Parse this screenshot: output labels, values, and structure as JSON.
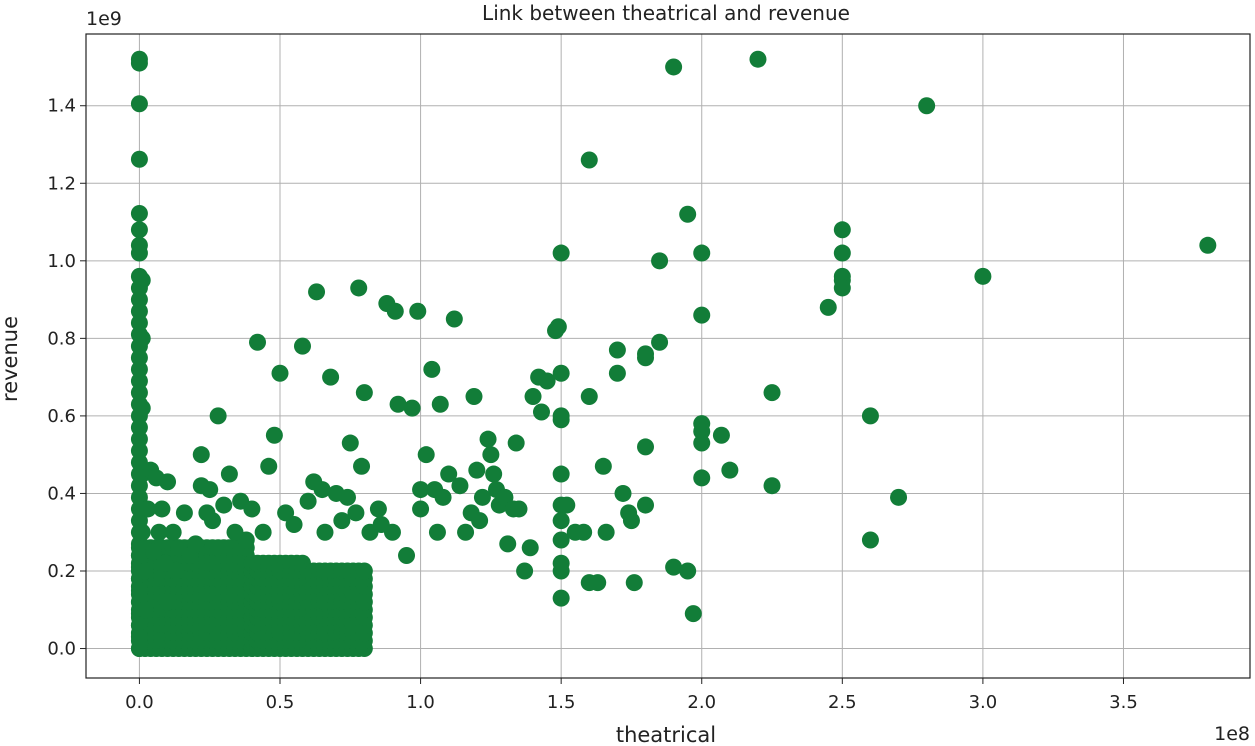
{
  "chart_data": {
    "type": "scatter",
    "title": "Link between theatrical and revenue",
    "xlabel": "theatrical",
    "ylabel": "revenue",
    "x_offset_label": "1e8",
    "y_offset_label": "1e9",
    "xlim": [
      -0.19,
      3.95
    ],
    "ylim": [
      -0.076,
      1.585
    ],
    "x_scale": 100000000,
    "y_scale": 1000000000,
    "x_ticks": [
      0.0,
      0.5,
      1.0,
      1.5,
      2.0,
      2.5,
      3.0,
      3.5
    ],
    "x_tick_labels": [
      "0.0",
      "0.5",
      "1.0",
      "1.5",
      "2.0",
      "2.5",
      "3.0",
      "3.5"
    ],
    "y_ticks": [
      0.0,
      0.2,
      0.4,
      0.6,
      0.8,
      1.0,
      1.2,
      1.4
    ],
    "y_tick_labels": [
      "0.0",
      "0.2",
      "0.4",
      "0.6",
      "0.8",
      "1.0",
      "1.2",
      "1.4"
    ],
    "grid": true,
    "marker_color": "#127d38",
    "points": [
      [
        0.0,
        1.52
      ],
      [
        0.0,
        1.51
      ],
      [
        0.0,
        1.405
      ],
      [
        0.0,
        1.262
      ],
      [
        0.0,
        1.122
      ],
      [
        0.0,
        1.08
      ],
      [
        0.0,
        1.04
      ],
      [
        0.0,
        1.02
      ],
      [
        0.0,
        0.96
      ],
      [
        0.0,
        0.93
      ],
      [
        0.0,
        0.9
      ],
      [
        0.0,
        0.87
      ],
      [
        0.0,
        0.84
      ],
      [
        0.0,
        0.81
      ],
      [
        0.0,
        0.78
      ],
      [
        0.0,
        0.75
      ],
      [
        0.0,
        0.72
      ],
      [
        0.0,
        0.69
      ],
      [
        0.0,
        0.66
      ],
      [
        0.0,
        0.63
      ],
      [
        0.0,
        0.6
      ],
      [
        0.0,
        0.57
      ],
      [
        0.0,
        0.54
      ],
      [
        0.0,
        0.51
      ],
      [
        0.0,
        0.48
      ],
      [
        0.0,
        0.45
      ],
      [
        0.0,
        0.42
      ],
      [
        0.0,
        0.39
      ],
      [
        0.0,
        0.36
      ],
      [
        0.0,
        0.33
      ],
      [
        0.0,
        0.3
      ],
      [
        0.0,
        0.27
      ],
      [
        0.0,
        0.24
      ],
      [
        0.0,
        0.21
      ],
      [
        0.0,
        0.18
      ],
      [
        0.0,
        0.15
      ],
      [
        0.0,
        0.12
      ],
      [
        0.0,
        0.09
      ],
      [
        0.0,
        0.06
      ],
      [
        0.0,
        0.03
      ],
      [
        0.0,
        0.0
      ],
      [
        0.01,
        0.95
      ],
      [
        0.01,
        0.8
      ],
      [
        0.01,
        0.62
      ],
      [
        0.01,
        0.45
      ],
      [
        0.01,
        0.3
      ],
      [
        0.02,
        0.2
      ],
      [
        0.02,
        0.1
      ],
      [
        0.03,
        0.36
      ],
      [
        0.04,
        0.46
      ],
      [
        0.05,
        0.25
      ],
      [
        0.06,
        0.44
      ],
      [
        0.07,
        0.3
      ],
      [
        0.08,
        0.36
      ],
      [
        0.09,
        0.22
      ],
      [
        0.1,
        0.43
      ],
      [
        0.1,
        0.12
      ],
      [
        0.12,
        0.3
      ],
      [
        0.13,
        0.2
      ],
      [
        0.14,
        0.26
      ],
      [
        0.16,
        0.35
      ],
      [
        0.18,
        0.24
      ],
      [
        0.2,
        0.27
      ],
      [
        0.22,
        0.5
      ],
      [
        0.22,
        0.42
      ],
      [
        0.24,
        0.35
      ],
      [
        0.25,
        0.41
      ],
      [
        0.26,
        0.33
      ],
      [
        0.28,
        0.6
      ],
      [
        0.3,
        0.37
      ],
      [
        0.32,
        0.45
      ],
      [
        0.34,
        0.3
      ],
      [
        0.36,
        0.38
      ],
      [
        0.38,
        0.28
      ],
      [
        0.4,
        0.36
      ],
      [
        0.42,
        0.79
      ],
      [
        0.44,
        0.3
      ],
      [
        0.46,
        0.47
      ],
      [
        0.48,
        0.55
      ],
      [
        0.5,
        0.71
      ],
      [
        0.52,
        0.35
      ],
      [
        0.55,
        0.32
      ],
      [
        0.58,
        0.78
      ],
      [
        0.6,
        0.38
      ],
      [
        0.62,
        0.43
      ],
      [
        0.63,
        0.92
      ],
      [
        0.65,
        0.41
      ],
      [
        0.66,
        0.3
      ],
      [
        0.68,
        0.7
      ],
      [
        0.7,
        0.4
      ],
      [
        0.72,
        0.33
      ],
      [
        0.74,
        0.39
      ],
      [
        0.75,
        0.53
      ],
      [
        0.77,
        0.35
      ],
      [
        0.78,
        0.93
      ],
      [
        0.79,
        0.47
      ],
      [
        0.8,
        0.66
      ],
      [
        0.82,
        0.3
      ],
      [
        0.85,
        0.36
      ],
      [
        0.86,
        0.32
      ],
      [
        0.88,
        0.89
      ],
      [
        0.9,
        0.3
      ],
      [
        0.91,
        0.87
      ],
      [
        0.92,
        0.63
      ],
      [
        0.95,
        0.24
      ],
      [
        0.97,
        0.62
      ],
      [
        0.99,
        0.87
      ],
      [
        1.0,
        0.41
      ],
      [
        1.0,
        0.36
      ],
      [
        1.02,
        0.5
      ],
      [
        1.04,
        0.72
      ],
      [
        1.05,
        0.41
      ],
      [
        1.06,
        0.3
      ],
      [
        1.07,
        0.63
      ],
      [
        1.08,
        0.39
      ],
      [
        1.1,
        0.45
      ],
      [
        1.12,
        0.85
      ],
      [
        1.14,
        0.42
      ],
      [
        1.16,
        0.3
      ],
      [
        1.18,
        0.35
      ],
      [
        1.19,
        0.65
      ],
      [
        1.2,
        0.46
      ],
      [
        1.21,
        0.33
      ],
      [
        1.22,
        0.39
      ],
      [
        1.24,
        0.54
      ],
      [
        1.25,
        0.5
      ],
      [
        1.26,
        0.45
      ],
      [
        1.27,
        0.41
      ],
      [
        1.28,
        0.37
      ],
      [
        1.3,
        0.39
      ],
      [
        1.31,
        0.27
      ],
      [
        1.33,
        0.36
      ],
      [
        1.34,
        0.53
      ],
      [
        1.35,
        0.36
      ],
      [
        1.37,
        0.2
      ],
      [
        1.39,
        0.26
      ],
      [
        1.4,
        0.65
      ],
      [
        1.42,
        0.7
      ],
      [
        1.43,
        0.61
      ],
      [
        1.45,
        0.69
      ],
      [
        1.48,
        0.82
      ],
      [
        1.49,
        0.83
      ],
      [
        1.5,
        0.71
      ],
      [
        1.5,
        0.6
      ],
      [
        1.5,
        0.59
      ],
      [
        1.5,
        0.45
      ],
      [
        1.5,
        0.37
      ],
      [
        1.5,
        0.33
      ],
      [
        1.5,
        0.28
      ],
      [
        1.5,
        0.22
      ],
      [
        1.5,
        0.2
      ],
      [
        1.5,
        0.13
      ],
      [
        1.5,
        1.02
      ],
      [
        1.52,
        0.37
      ],
      [
        1.55,
        0.3
      ],
      [
        1.58,
        0.3
      ],
      [
        1.6,
        0.65
      ],
      [
        1.6,
        0.17
      ],
      [
        1.6,
        1.26
      ],
      [
        1.63,
        0.17
      ],
      [
        1.65,
        0.47
      ],
      [
        1.66,
        0.3
      ],
      [
        1.7,
        0.77
      ],
      [
        1.7,
        0.71
      ],
      [
        1.72,
        0.4
      ],
      [
        1.74,
        0.35
      ],
      [
        1.75,
        0.33
      ],
      [
        1.76,
        0.17
      ],
      [
        1.8,
        0.76
      ],
      [
        1.8,
        0.75
      ],
      [
        1.8,
        0.52
      ],
      [
        1.8,
        0.37
      ],
      [
        1.85,
        1.0
      ],
      [
        1.85,
        0.79
      ],
      [
        1.9,
        1.5
      ],
      [
        1.9,
        0.21
      ],
      [
        1.95,
        1.12
      ],
      [
        1.95,
        0.2
      ],
      [
        1.97,
        0.09
      ],
      [
        2.0,
        1.02
      ],
      [
        2.0,
        0.86
      ],
      [
        2.0,
        0.58
      ],
      [
        2.0,
        0.56
      ],
      [
        2.0,
        0.53
      ],
      [
        2.0,
        0.44
      ],
      [
        2.07,
        0.55
      ],
      [
        2.1,
        0.46
      ],
      [
        2.2,
        1.52
      ],
      [
        2.25,
        0.66
      ],
      [
        2.25,
        0.42
      ],
      [
        2.45,
        0.88
      ],
      [
        2.5,
        1.08
      ],
      [
        2.5,
        1.02
      ],
      [
        2.5,
        0.96
      ],
      [
        2.5,
        0.95
      ],
      [
        2.5,
        0.93
      ],
      [
        2.6,
        0.6
      ],
      [
        2.6,
        0.28
      ],
      [
        2.7,
        0.39
      ],
      [
        2.8,
        1.4
      ],
      [
        3.0,
        0.96
      ],
      [
        3.8,
        1.04
      ]
    ]
  }
}
